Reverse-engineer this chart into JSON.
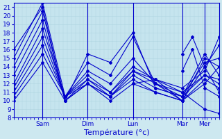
{
  "xlabel": "Température (°c)",
  "bg_color": "#cde8f0",
  "plot_bg": "#c5e4ee",
  "grid_color": "#aed4e0",
  "line_color": "#0000cc",
  "ylim": [
    8,
    21.5
  ],
  "yticks": [
    8,
    9,
    10,
    11,
    12,
    13,
    14,
    15,
    16,
    17,
    18,
    19,
    20,
    21
  ],
  "xlim": [
    0,
    100
  ],
  "day_ticks": [
    14,
    36,
    58,
    82,
    93
  ],
  "day_labels": [
    "Sam",
    "Dim",
    "Lun",
    "Mar",
    "Mer"
  ],
  "series": [
    [
      0,
      16,
      14,
      21,
      25,
      10,
      36,
      12,
      47,
      10,
      58,
      12,
      69,
      11,
      82,
      10,
      93,
      12,
      100,
      14
    ],
    [
      0,
      15,
      14,
      21.5,
      25,
      10.5,
      36,
      12,
      47,
      10.5,
      58,
      12.5,
      69,
      11,
      82,
      10,
      93,
      12.5,
      100,
      11.5
    ],
    [
      0,
      14,
      14,
      20.5,
      25,
      10,
      36,
      12,
      47,
      10.5,
      58,
      13,
      69,
      11.5,
      82,
      10.5,
      93,
      13,
      100,
      12
    ],
    [
      0,
      13,
      14,
      19.5,
      25,
      10,
      36,
      12.5,
      47,
      10.5,
      58,
      13.5,
      69,
      12,
      82,
      11,
      93,
      13,
      100,
      12.5
    ],
    [
      0,
      12,
      14,
      18.5,
      25,
      10.5,
      36,
      12.5,
      47,
      11,
      58,
      13.5,
      69,
      12.5,
      82,
      11.5,
      93,
      13.5,
      100,
      17.5
    ],
    [
      0,
      11.5,
      14,
      17.5,
      25,
      10.5,
      36,
      13,
      47,
      11,
      58,
      14,
      69,
      12.5,
      82,
      10,
      93,
      14,
      100,
      16.5
    ],
    [
      0,
      11,
      14,
      16.5,
      25,
      10.5,
      36,
      13.5,
      47,
      12,
      58,
      15,
      69,
      12,
      82,
      10.5,
      93,
      14.5,
      100,
      15
    ],
    [
      0,
      10.5,
      14,
      15.5,
      25,
      10.5,
      36,
      14.5,
      47,
      13,
      58,
      17.5,
      69,
      12,
      82,
      10,
      93,
      15,
      100,
      14
    ],
    [
      0,
      10,
      14,
      14.5,
      25,
      10,
      36,
      15.5,
      47,
      14.5,
      58,
      18,
      69,
      11.5,
      82,
      10.5,
      93,
      15.5,
      100,
      13
    ]
  ],
  "extra_series": [
    [
      58,
      12,
      69,
      12.5,
      82,
      11,
      93,
      9,
      100,
      8.5
    ],
    [
      82,
      15.5,
      87,
      17.5,
      93,
      14,
      100,
      11
    ],
    [
      82,
      13.5,
      87,
      16,
      93,
      11.5,
      100,
      10.5
    ]
  ]
}
